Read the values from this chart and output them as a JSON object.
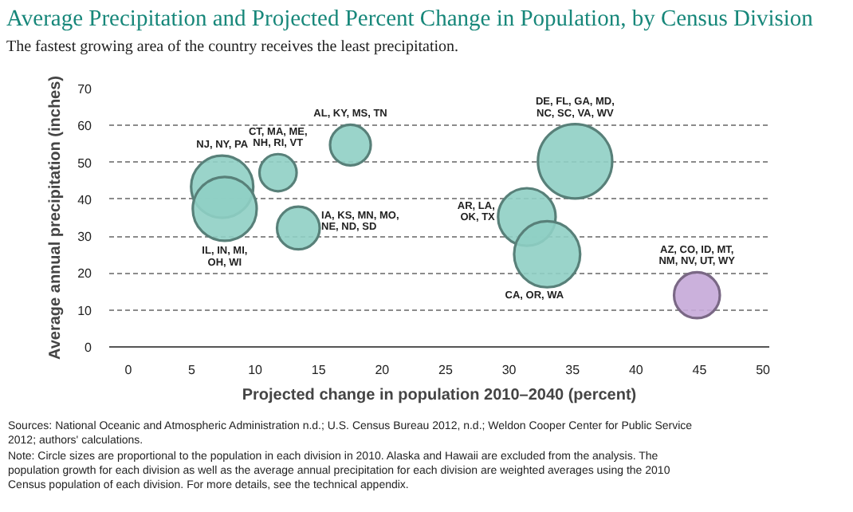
{
  "chart_data": {
    "type": "bubble",
    "title": "Average Precipitation and Projected Percent Change in Population, by Census Division",
    "subtitle": "The fastest growing area of the country receives the least precipitation.",
    "xlabel": "Projected change in population 2010–2040 (percent)",
    "ylabel": "Average annual precipitation (inches)",
    "xlim": [
      -1.5,
      50.5
    ],
    "ylim": [
      0,
      70
    ],
    "xticks": [
      0,
      5,
      10,
      15,
      20,
      25,
      30,
      35,
      40,
      45,
      50
    ],
    "yticks": [
      0,
      10,
      20,
      30,
      40,
      50,
      60,
      70
    ],
    "grid": "y",
    "series": [
      {
        "name": "NJ, NY, PA",
        "color": "#8fcfc4",
        "x": [
          7.4
        ],
        "values": [
          43.4
        ],
        "sizes": [
          0.7
        ]
      },
      {
        "name": "IL, IN, MI,\nOH, WI",
        "color": "#8fcfc4",
        "x": [
          7.6
        ],
        "values": [
          37.4
        ],
        "sizes": [
          0.74
        ]
      },
      {
        "name": "CT, MA, ME,\nNH, RI, VT",
        "color": "#8fcfc4",
        "x": [
          11.8
        ],
        "values": [
          47.2
        ],
        "sizes": [
          0.25
        ]
      },
      {
        "name": "AL, KY, MS, TN",
        "color": "#8fcfc4",
        "x": [
          17.5
        ],
        "values": [
          54.7
        ],
        "sizes": [
          0.3
        ]
      },
      {
        "name": "IA, KS, MN, MO,\nNE, ND, SD",
        "color": "#8fcfc4",
        "x": [
          13.4
        ],
        "values": [
          32.2
        ],
        "sizes": [
          0.33
        ]
      },
      {
        "name": "DE, FL, GA, MD,\nNC, SC, VA, WV",
        "color": "#8fcfc4",
        "x": [
          35.2
        ],
        "values": [
          50.3
        ],
        "sizes": [
          1
        ]
      },
      {
        "name": "AR, LA,\nOK, TX",
        "color": "#8fcfc4",
        "x": [
          31.4
        ],
        "values": [
          35.2
        ],
        "sizes": [
          0.6
        ]
      },
      {
        "name": "CA, OR, WA",
        "color": "#8fcfc4",
        "x": [
          33.0
        ],
        "values": [
          25.1
        ],
        "sizes": [
          0.79
        ]
      },
      {
        "name": "AZ, CO, ID, MT,\nNM, NV, UT, WY",
        "color": "#c5a8d8",
        "x": [
          44.8
        ],
        "values": [
          14.0
        ],
        "sizes": [
          0.38
        ]
      }
    ],
    "annotations": [
      "Sources: National Oceanic and Atmospheric Administration n.d.; U.S. Census Bureau 2012, n.d.; Weldon Cooper Center for Public Service 2012; authors' calculations.",
      "Note: Circle sizes are proportional to the population in each division in 2010. Alaska and Hawaii are excluded from the analysis. The population growth for each division as well as the average annual precipitation for each division are weighted averages using the 2010 Census population of each division. For more details, see the technical appendix."
    ]
  }
}
